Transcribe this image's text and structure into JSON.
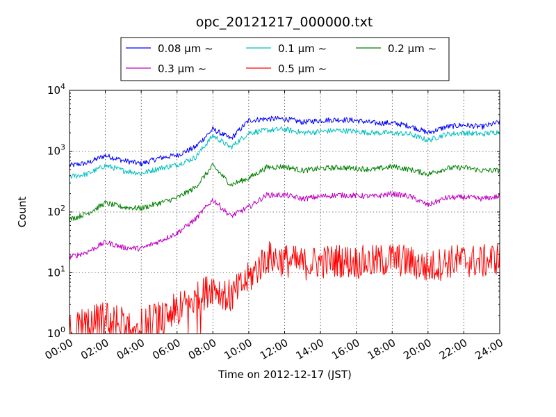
{
  "chart_data": {
    "type": "line",
    "title": "opc_20121217_000000.txt",
    "xlabel": "Time on 2012-12-17 (JST)",
    "ylabel": "Count",
    "y_scale": "log",
    "ylim": [
      1,
      10000
    ],
    "xlim": [
      "00:00",
      "24:00"
    ],
    "x_ticks": [
      "00:00",
      "02:00",
      "04:00",
      "06:00",
      "08:00",
      "10:00",
      "12:00",
      "14:00",
      "16:00",
      "18:00",
      "20:00",
      "22:00",
      "24:00"
    ],
    "y_ticks": [
      {
        "value": 1,
        "base": "10",
        "exp": "0"
      },
      {
        "value": 10,
        "base": "10",
        "exp": "1"
      },
      {
        "value": 100,
        "base": "10",
        "exp": "2"
      },
      {
        "value": 1000,
        "base": "10",
        "exp": "3"
      },
      {
        "value": 10000,
        "base": "10",
        "exp": "4"
      }
    ],
    "grid": true,
    "legend_position": "top",
    "x": [
      "00:00",
      "01:00",
      "02:00",
      "03:00",
      "04:00",
      "05:00",
      "06:00",
      "07:00",
      "08:00",
      "09:00",
      "10:00",
      "11:00",
      "12:00",
      "13:00",
      "14:00",
      "15:00",
      "16:00",
      "17:00",
      "18:00",
      "19:00",
      "20:00",
      "21:00",
      "22:00",
      "23:00",
      "24:00"
    ],
    "series": [
      {
        "name": "0.08 μm ∼",
        "color": "#0000ff",
        "values": [
          580,
          640,
          850,
          700,
          620,
          770,
          860,
          1150,
          2300,
          1600,
          3200,
          3400,
          3400,
          3000,
          3200,
          3300,
          3200,
          2900,
          2900,
          2600,
          2000,
          2500,
          2700,
          2500,
          3000
        ]
      },
      {
        "name": "0.1 μm ∼",
        "color": "#00bfbf",
        "values": [
          380,
          420,
          580,
          480,
          430,
          520,
          600,
          780,
          1800,
          1150,
          2000,
          2200,
          2300,
          2000,
          2100,
          2200,
          2100,
          2000,
          2000,
          1900,
          1500,
          1900,
          2000,
          1900,
          2100
        ]
      },
      {
        "name": "0.2 μm ∼",
        "color": "#008000",
        "values": [
          75,
          95,
          140,
          120,
          115,
          140,
          170,
          250,
          580,
          280,
          360,
          540,
          560,
          480,
          520,
          540,
          520,
          500,
          560,
          500,
          420,
          520,
          540,
          480,
          480
        ]
      },
      {
        "name": "0.3 μm ∼",
        "color": "#bf00bf",
        "values": [
          18,
          22,
          32,
          26,
          25,
          33,
          45,
          75,
          160,
          85,
          120,
          190,
          190,
          165,
          180,
          190,
          185,
          180,
          200,
          180,
          130,
          170,
          175,
          165,
          180
        ]
      },
      {
        "name": "0.5 μm ∼",
        "color": "#ff0000",
        "values": [
          1.3,
          1.5,
          1.8,
          1.5,
          1.5,
          1.8,
          2.5,
          3.5,
          6,
          4,
          8,
          18,
          16,
          14,
          15,
          16,
          15,
          15,
          17,
          15,
          12,
          15,
          16,
          15,
          18
        ]
      }
    ]
  }
}
